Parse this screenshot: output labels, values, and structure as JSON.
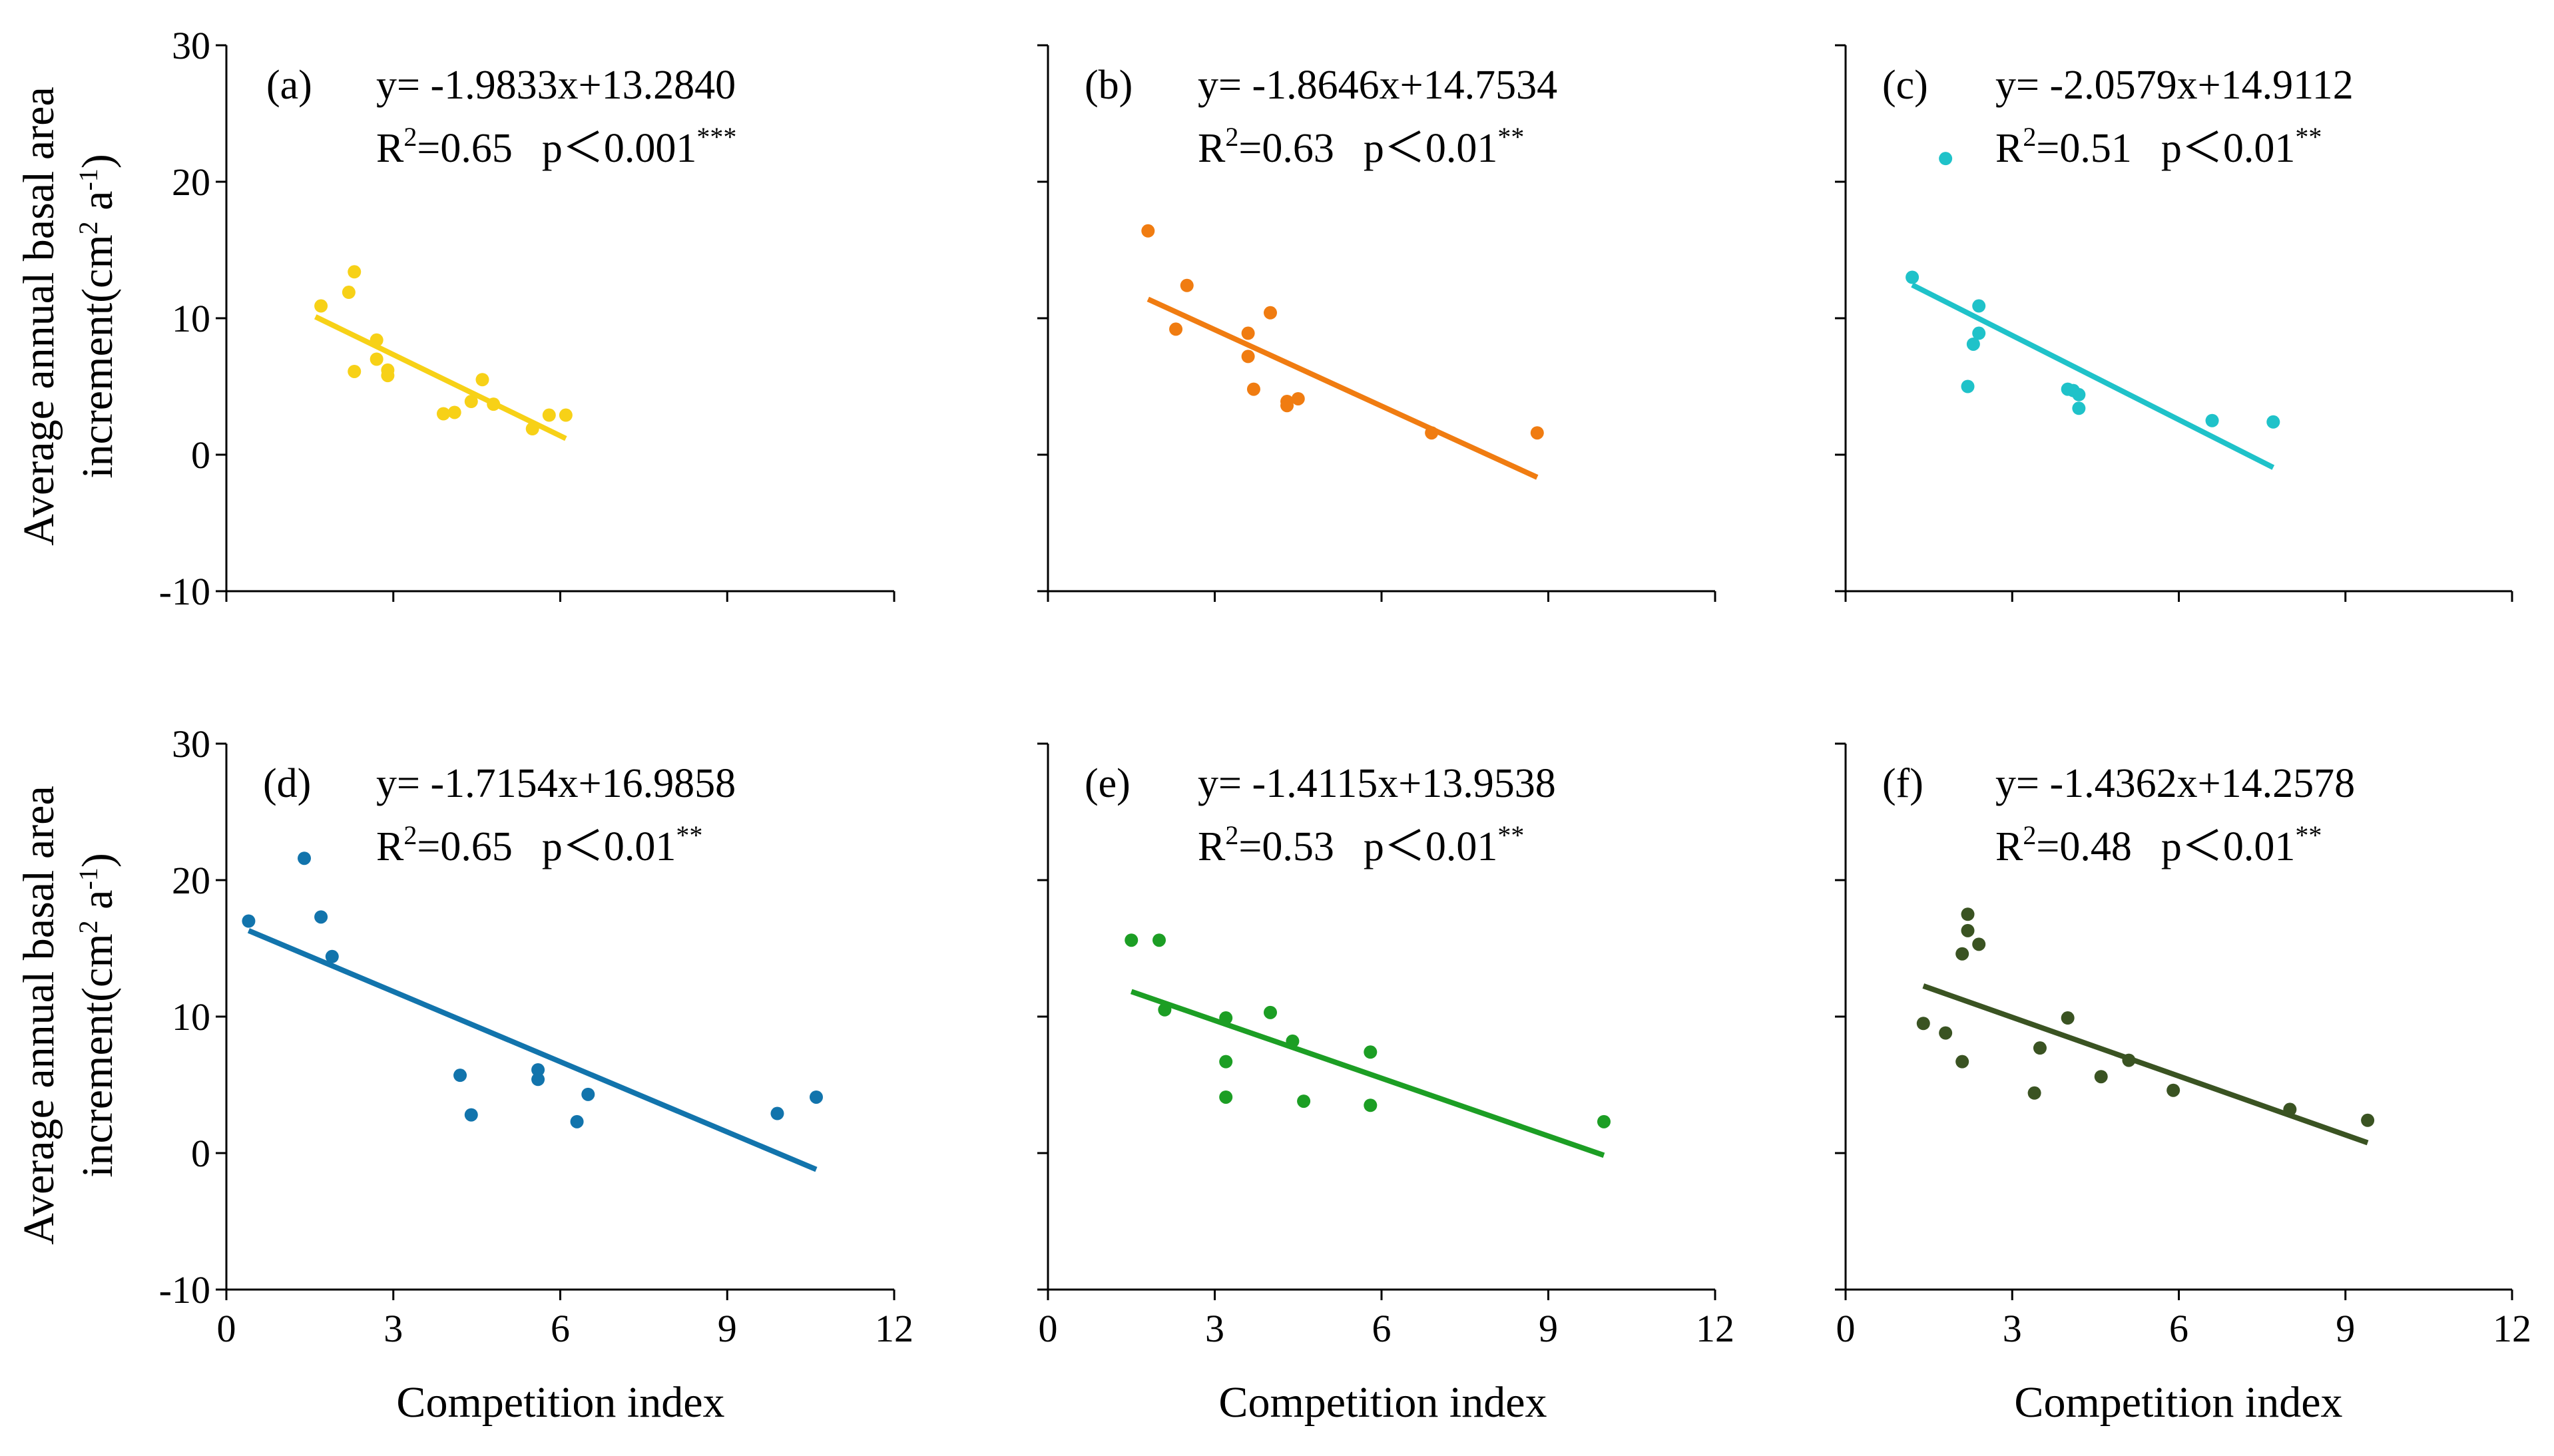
{
  "figure": {
    "ylabel_line1": "Average annual basal area",
    "ylabel_line2_prefix": "increment(cm",
    "ylabel_line2_sup1": "2",
    "ylabel_line2_mid": " a",
    "ylabel_line2_sup2": "-1",
    "ylabel_line2_suffix": ")",
    "xlabel": "Competition index"
  },
  "chart_data": [
    {
      "id": "a",
      "label": "(a)",
      "type": "scatter",
      "color": "#f7d117",
      "equation": "y= -1.9833x+13.2840",
      "r2_prefix": "R",
      "r2_sup": "2",
      "r2_value": "=0.65",
      "p_text": "p＜0.001",
      "stars": "***",
      "slope": -1.9833,
      "intercept": 13.284,
      "line_x": [
        1.6,
        6.1
      ],
      "xlabel": "Competition index",
      "ylabel": "Average annual basal area increment(cm2 a-1)",
      "xlim": [
        0,
        12
      ],
      "ylim": [
        -10,
        30
      ],
      "x_ticks": [
        "0",
        "3",
        "6",
        "9",
        "12"
      ],
      "y_ticks": [
        "-10",
        "0",
        "10",
        "20",
        "30"
      ],
      "points": [
        [
          1.7,
          10.9
        ],
        [
          2.2,
          11.9
        ],
        [
          2.3,
          13.4
        ],
        [
          2.3,
          6.1
        ],
        [
          2.7,
          8.4
        ],
        [
          2.7,
          7.0
        ],
        [
          2.9,
          6.2
        ],
        [
          2.9,
          5.8
        ],
        [
          3.9,
          3.0
        ],
        [
          4.1,
          3.1
        ],
        [
          4.4,
          3.9
        ],
        [
          4.6,
          5.5
        ],
        [
          4.8,
          3.7
        ],
        [
          5.5,
          1.9
        ],
        [
          5.8,
          2.9
        ],
        [
          6.1,
          2.9
        ]
      ]
    },
    {
      "id": "b",
      "label": "(b)",
      "type": "scatter",
      "color": "#f07c11",
      "equation": "y= -1.8646x+14.7534",
      "r2_prefix": "R",
      "r2_sup": "2",
      "r2_value": "=0.63",
      "p_text": "p＜0.01",
      "stars": "**",
      "slope": -1.8646,
      "intercept": 14.7534,
      "line_x": [
        1.8,
        8.8
      ],
      "xlabel": "Competition index",
      "ylabel": "Average annual basal area increment(cm2 a-1)",
      "xlim": [
        0,
        12
      ],
      "ylim": [
        -10,
        30
      ],
      "x_ticks": [
        "0",
        "3",
        "6",
        "9",
        "12"
      ],
      "y_ticks": [
        "-10",
        "0",
        "10",
        "20",
        "30"
      ],
      "points": [
        [
          1.8,
          16.4
        ],
        [
          2.3,
          9.2
        ],
        [
          2.5,
          12.4
        ],
        [
          3.6,
          8.9
        ],
        [
          3.6,
          7.2
        ],
        [
          3.7,
          4.8
        ],
        [
          4.0,
          10.4
        ],
        [
          4.3,
          3.9
        ],
        [
          4.3,
          3.6
        ],
        [
          4.5,
          4.1
        ],
        [
          6.9,
          1.6
        ],
        [
          8.8,
          1.6
        ]
      ]
    },
    {
      "id": "c",
      "label": "(c)",
      "type": "scatter",
      "color": "#1fc2c9",
      "equation": "y= -2.0579x+14.9112",
      "r2_prefix": "R",
      "r2_sup": "2",
      "r2_value": "=0.51",
      "p_text": "p＜0.01",
      "stars": "**",
      "slope": -2.0579,
      "intercept": 14.9112,
      "line_x": [
        1.2,
        7.7
      ],
      "xlabel": "Competition index",
      "ylabel": "Average annual basal area increment(cm2 a-1)",
      "xlim": [
        0,
        12
      ],
      "ylim": [
        -10,
        30
      ],
      "x_ticks": [
        "0",
        "3",
        "6",
        "9",
        "12"
      ],
      "y_ticks": [
        "-10",
        "0",
        "10",
        "20",
        "30"
      ],
      "points": [
        [
          1.2,
          13.0
        ],
        [
          1.8,
          21.7
        ],
        [
          2.2,
          5.0
        ],
        [
          2.3,
          8.1
        ],
        [
          2.4,
          10.9
        ],
        [
          2.4,
          8.9
        ],
        [
          4.0,
          4.8
        ],
        [
          4.1,
          4.7
        ],
        [
          4.2,
          4.4
        ],
        [
          4.2,
          3.4
        ],
        [
          6.6,
          2.5
        ],
        [
          7.7,
          2.4
        ]
      ]
    },
    {
      "id": "d",
      "label": "(d)",
      "type": "scatter",
      "color": "#1274ac",
      "equation": "y= -1.7154x+16.9858",
      "r2_prefix": "R",
      "r2_sup": "2",
      "r2_value": "=0.65",
      "p_text": "p＜0.01",
      "stars": "**",
      "slope": -1.7154,
      "intercept": 16.9858,
      "line_x": [
        0.4,
        10.6
      ],
      "xlabel": "Competition index",
      "ylabel": "Average annual basal area increment(cm2 a-1)",
      "xlim": [
        0,
        12
      ],
      "ylim": [
        -10,
        30
      ],
      "x_ticks": [
        "0",
        "3",
        "6",
        "9",
        "12"
      ],
      "y_ticks": [
        "-10",
        "0",
        "10",
        "20",
        "30"
      ],
      "points": [
        [
          0.4,
          17.0
        ],
        [
          1.4,
          21.6
        ],
        [
          1.7,
          17.3
        ],
        [
          1.9,
          14.4
        ],
        [
          4.2,
          5.7
        ],
        [
          4.4,
          2.8
        ],
        [
          5.6,
          6.1
        ],
        [
          5.6,
          5.4
        ],
        [
          6.3,
          2.3
        ],
        [
          6.5,
          4.3
        ],
        [
          9.9,
          2.9
        ],
        [
          10.6,
          4.1
        ]
      ]
    },
    {
      "id": "e",
      "label": "(e)",
      "type": "scatter",
      "color": "#1c9e24",
      "equation": "y= -1.4115x+13.9538",
      "r2_prefix": "R",
      "r2_sup": "2",
      "r2_value": "=0.53",
      "p_text": "p＜0.01",
      "stars": "**",
      "slope": -1.4115,
      "intercept": 13.9538,
      "line_x": [
        1.5,
        10.0
      ],
      "xlabel": "Competition index",
      "ylabel": "Average annual basal area increment(cm2 a-1)",
      "xlim": [
        0,
        12
      ],
      "ylim": [
        -10,
        30
      ],
      "x_ticks": [
        "0",
        "3",
        "6",
        "9",
        "12"
      ],
      "y_ticks": [
        "-10",
        "0",
        "10",
        "20",
        "30"
      ],
      "points": [
        [
          1.5,
          15.6
        ],
        [
          2.0,
          15.6
        ],
        [
          2.1,
          10.5
        ],
        [
          3.2,
          9.9
        ],
        [
          3.2,
          6.7
        ],
        [
          3.2,
          4.1
        ],
        [
          4.0,
          10.3
        ],
        [
          4.4,
          8.2
        ],
        [
          4.6,
          3.8
        ],
        [
          5.8,
          7.4
        ],
        [
          5.8,
          3.5
        ],
        [
          10.0,
          2.3
        ]
      ]
    },
    {
      "id": "f",
      "label": "(f)",
      "type": "scatter",
      "color": "#3a5322",
      "equation": "y= -1.4362x+14.2578",
      "r2_prefix": "R",
      "r2_sup": "2",
      "r2_value": "=0.48",
      "p_text": "p＜0.01",
      "stars": "**",
      "slope": -1.4362,
      "intercept": 14.2578,
      "line_x": [
        1.4,
        9.4
      ],
      "xlabel": "Competition index",
      "ylabel": "Average annual basal area increment(cm2 a-1)",
      "xlim": [
        0,
        12
      ],
      "ylim": [
        -10,
        30
      ],
      "x_ticks": [
        "0",
        "3",
        "6",
        "9",
        "12"
      ],
      "y_ticks": [
        "-10",
        "0",
        "10",
        "20",
        "30"
      ],
      "points": [
        [
          1.4,
          9.5
        ],
        [
          1.8,
          8.8
        ],
        [
          2.1,
          14.6
        ],
        [
          2.1,
          6.7
        ],
        [
          2.2,
          17.5
        ],
        [
          2.2,
          16.3
        ],
        [
          2.4,
          15.3
        ],
        [
          3.4,
          4.4
        ],
        [
          3.5,
          7.7
        ],
        [
          4.0,
          9.9
        ],
        [
          4.6,
          5.6
        ],
        [
          5.1,
          6.8
        ],
        [
          5.9,
          4.6
        ],
        [
          8.0,
          3.2
        ],
        [
          9.4,
          2.4
        ]
      ]
    }
  ]
}
